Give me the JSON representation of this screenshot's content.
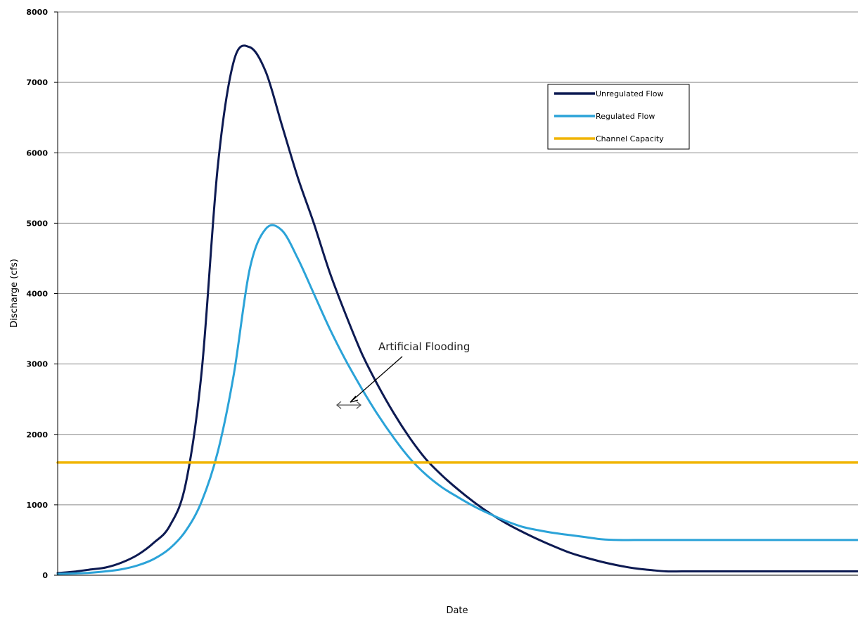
{
  "chart_data": {
    "type": "line",
    "xlabel": "Date",
    "ylabel": "Discharge (cfs)",
    "ylim": [
      0,
      8000
    ],
    "yticks": [
      0,
      1000,
      2000,
      3000,
      4000,
      5000,
      6000,
      7000,
      8000
    ],
    "grid": true,
    "legend_position": "top-right",
    "x": [
      0,
      2,
      4,
      6,
      8,
      10,
      12,
      14,
      16,
      18,
      20,
      22,
      24,
      26,
      28,
      30,
      32,
      34,
      36,
      38,
      40,
      42,
      44,
      46,
      48,
      50,
      52,
      54,
      56,
      58,
      60,
      62,
      64,
      66,
      68,
      70,
      72,
      74,
      76,
      78,
      80,
      82,
      84,
      86,
      88,
      90,
      92,
      94,
      96,
      98,
      100
    ],
    "series": [
      {
        "name": "Unregulated Flow",
        "color": "#0d1a52",
        "values": [
          30,
          50,
          80,
          110,
          180,
          290,
          460,
          700,
          1300,
          2900,
          5800,
          7300,
          7500,
          7150,
          6400,
          5650,
          5000,
          4300,
          3700,
          3150,
          2700,
          2300,
          1950,
          1650,
          1420,
          1220,
          1040,
          880,
          740,
          620,
          510,
          410,
          320,
          250,
          190,
          140,
          100,
          75,
          55,
          55,
          55,
          55,
          55,
          55,
          55,
          55,
          55,
          55,
          55,
          55,
          55
        ]
      },
      {
        "name": "Regulated Flow",
        "color": "#2ba3d8",
        "values": [
          20,
          25,
          35,
          55,
          85,
          140,
          230,
          380,
          630,
          1050,
          1750,
          2850,
          4350,
          4920,
          4900,
          4500,
          4000,
          3500,
          3050,
          2650,
          2280,
          1950,
          1660,
          1430,
          1250,
          1110,
          980,
          870,
          770,
          690,
          640,
          600,
          570,
          540,
          510,
          500,
          500,
          500,
          500,
          500,
          500,
          500,
          500,
          500,
          500,
          500,
          500,
          500,
          500,
          500,
          500
        ]
      },
      {
        "name": "Channel Capacity",
        "color": "#f0b400",
        "values": [
          1600,
          1600,
          1600,
          1600,
          1600,
          1600,
          1600,
          1600,
          1600,
          1600,
          1600,
          1600,
          1600,
          1600,
          1600,
          1600,
          1600,
          1600,
          1600,
          1600,
          1600,
          1600,
          1600,
          1600,
          1600,
          1600,
          1600,
          1600,
          1600,
          1600,
          1600,
          1600,
          1600,
          1600,
          1600,
          1600,
          1600,
          1600,
          1600,
          1600,
          1600,
          1600,
          1600,
          1600,
          1600,
          1600,
          1600,
          1600,
          1600,
          1600,
          1600
        ]
      }
    ],
    "shaded_region": {
      "label": "Artificial Flooding",
      "color": "#a6a6a6",
      "between": [
        "Regulated Flow",
        "Unregulated Flow"
      ],
      "above": 1600
    },
    "annotation": "Artificial Flooding"
  }
}
